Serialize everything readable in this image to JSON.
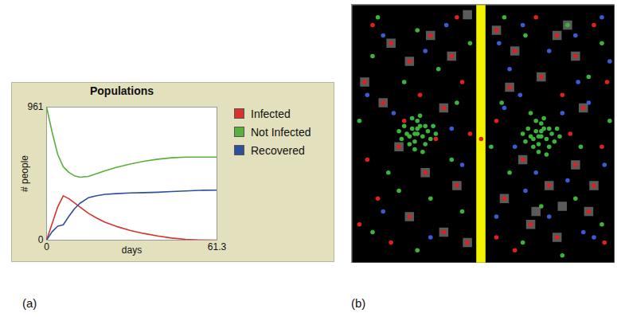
{
  "chart_data": [
    {
      "type": "line",
      "panel_label": "(a)",
      "title": "Populations",
      "x_label": "days",
      "y_label": "# people",
      "x": [
        0,
        2,
        4,
        6,
        8,
        10,
        12,
        15,
        18,
        21,
        25,
        30,
        35,
        40,
        45,
        50,
        55,
        61.3
      ],
      "xlim": [
        0,
        61.3
      ],
      "xticks": [
        0,
        61.3
      ],
      "ylim": [
        0,
        961
      ],
      "yticks": [
        0,
        961
      ],
      "legend": "right",
      "series": [
        {
          "name": "Infected",
          "color": "#d7322b",
          "values": [
            0,
            120,
            240,
            320,
            300,
            270,
            240,
            195,
            160,
            130,
            100,
            70,
            48,
            30,
            15,
            6,
            1,
            0
          ]
        },
        {
          "name": "Not Infected",
          "color": "#59b03c",
          "values": [
            961,
            780,
            620,
            530,
            490,
            465,
            455,
            460,
            480,
            500,
            525,
            550,
            570,
            585,
            595,
            600,
            600,
            600
          ]
        },
        {
          "name": "Recovered",
          "color": "#2f4f9a",
          "values": [
            0,
            61,
            101,
            111,
            171,
            226,
            266,
            306,
            321,
            331,
            336,
            341,
            343,
            346,
            351,
            355,
            360,
            361
          ]
        }
      ]
    },
    {
      "type": "scatter",
      "panel_label": "(b)",
      "xlim": [
        0,
        100
      ],
      "ylim": [
        0,
        100
      ],
      "tick_labels": false,
      "series": [
        {
          "type": "band",
          "color": "#f2f200",
          "x": [
            47.5,
            51
          ]
        },
        {
          "type": "scatter",
          "marker": "square",
          "color": "#5a5a5a",
          "points": [
            [
              15,
              85
            ],
            [
              22,
              78
            ],
            [
              5,
              70
            ],
            [
              30,
              88
            ],
            [
              38,
              80
            ],
            [
              35,
              60
            ],
            [
              18,
              45
            ],
            [
              28,
              35
            ],
            [
              40,
              30
            ],
            [
              22,
              18
            ],
            [
              35,
              12
            ],
            [
              44,
              8
            ],
            [
              12,
              62
            ],
            [
              55,
              90
            ],
            [
              62,
              82
            ],
            [
              78,
              88
            ],
            [
              85,
              80
            ],
            [
              88,
              60
            ],
            [
              60,
              68
            ],
            [
              65,
              40
            ],
            [
              75,
              30
            ],
            [
              85,
              38
            ],
            [
              68,
              15
            ],
            [
              78,
              10
            ],
            [
              90,
              20
            ],
            [
              72,
              72
            ],
            [
              92,
              30
            ],
            [
              82,
              92
            ],
            [
              44,
              96
            ],
            [
              70,
              20
            ],
            [
              80,
              22
            ],
            [
              58,
              25
            ]
          ]
        },
        {
          "type": "scatter",
          "marker": "circle",
          "color": "#3cb43c",
          "points": [
            [
              10,
              95
            ],
            [
              25,
              90
            ],
            [
              33,
              75
            ],
            [
              8,
              80
            ],
            [
              20,
              70
            ],
            [
              40,
              62
            ],
            [
              3,
              55
            ],
            [
              14,
              35
            ],
            [
              30,
              25
            ],
            [
              42,
              20
            ],
            [
              8,
              12
            ],
            [
              25,
              5
            ],
            [
              38,
              40
            ],
            [
              45,
              85
            ],
            [
              18,
              28
            ],
            [
              58,
              95
            ],
            [
              66,
              88
            ],
            [
              82,
              92
            ],
            [
              95,
              85
            ],
            [
              90,
              72
            ],
            [
              57,
              62
            ],
            [
              68,
              58
            ],
            [
              87,
              45
            ],
            [
              98,
              55
            ],
            [
              60,
              35
            ],
            [
              72,
              22
            ],
            [
              85,
              25
            ],
            [
              95,
              15
            ],
            [
              65,
              8
            ],
            [
              80,
              3
            ],
            [
              53,
              45
            ],
            [
              25,
              50
            ],
            [
              23,
              52
            ],
            [
              27,
              49
            ],
            [
              24,
              47
            ],
            [
              26,
              53
            ],
            [
              21,
              50
            ],
            [
              29,
              51
            ],
            [
              22,
              46
            ],
            [
              28,
              46
            ],
            [
              25,
              55
            ],
            [
              20,
              53
            ],
            [
              30,
              48
            ],
            [
              24,
              44
            ],
            [
              26,
              57
            ],
            [
              19,
              48
            ],
            [
              31,
              53
            ],
            [
              23,
              56
            ],
            [
              27,
              43
            ],
            [
              18,
              51
            ],
            [
              32,
              50
            ],
            [
              25,
              52
            ],
            [
              22,
              49
            ],
            [
              28,
              53
            ],
            [
              24,
              50
            ],
            [
              72,
              49
            ],
            [
              70,
              51
            ],
            [
              74,
              48
            ],
            [
              71,
              46
            ],
            [
              73,
              52
            ],
            [
              68,
              49
            ],
            [
              76,
              50
            ],
            [
              69,
              45
            ],
            [
              75,
              45
            ],
            [
              72,
              54
            ],
            [
              67,
              52
            ],
            [
              77,
              47
            ],
            [
              71,
              43
            ],
            [
              73,
              56
            ],
            [
              66,
              47
            ],
            [
              78,
              52
            ],
            [
              70,
              55
            ],
            [
              74,
              42
            ],
            [
              65,
              50
            ],
            [
              79,
              49
            ],
            [
              72,
              51
            ],
            [
              69,
              48
            ],
            [
              75,
              52
            ],
            [
              71,
              49
            ]
          ]
        },
        {
          "type": "scatter",
          "marker": "circle",
          "color": "#3c5ad2",
          "points": [
            [
              12,
              88
            ],
            [
              28,
              82
            ],
            [
              36,
              92
            ],
            [
              6,
              65
            ],
            [
              16,
              58
            ],
            [
              38,
              52
            ],
            [
              12,
              20
            ],
            [
              30,
              10
            ],
            [
              42,
              38
            ],
            [
              56,
              85
            ],
            [
              60,
              75
            ],
            [
              65,
              92
            ],
            [
              75,
              82
            ],
            [
              85,
              88
            ],
            [
              95,
              95
            ],
            [
              58,
              60
            ],
            [
              80,
              58
            ],
            [
              90,
              62
            ],
            [
              96,
              38
            ],
            [
              62,
              45
            ],
            [
              70,
              35
            ],
            [
              82,
              32
            ],
            [
              92,
              10
            ],
            [
              55,
              18
            ],
            [
              75,
              18
            ],
            [
              88,
              12
            ],
            [
              66,
              28
            ],
            [
              98,
              78
            ],
            [
              86,
              70
            ],
            [
              64,
              65
            ]
          ]
        },
        {
          "type": "scatter",
          "marker": "circle",
          "color": "#e0201f",
          "points": [
            [
              8,
              92
            ],
            [
              15,
              85
            ],
            [
              22,
              78
            ],
            [
              5,
              70
            ],
            [
              12,
              62
            ],
            [
              30,
              88
            ],
            [
              38,
              80
            ],
            [
              42,
              70
            ],
            [
              35,
              60
            ],
            [
              18,
              45
            ],
            [
              6,
              40
            ],
            [
              28,
              35
            ],
            [
              40,
              30
            ],
            [
              10,
              25
            ],
            [
              22,
              18
            ],
            [
              35,
              12
            ],
            [
              44,
              8
            ],
            [
              15,
              8
            ],
            [
              45,
              50
            ],
            [
              32,
              48
            ],
            [
              20,
              55
            ],
            [
              3,
              15
            ],
            [
              40,
              95
            ],
            [
              26,
              65
            ],
            [
              49.2,
              48
            ],
            [
              55,
              90
            ],
            [
              62,
              82
            ],
            [
              70,
              95
            ],
            [
              78,
              88
            ],
            [
              85,
              80
            ],
            [
              92,
              92
            ],
            [
              97,
              70
            ],
            [
              88,
              60
            ],
            [
              80,
              65
            ],
            [
              60,
              68
            ],
            [
              55,
              55
            ],
            [
              65,
              40
            ],
            [
              75,
              30
            ],
            [
              85,
              38
            ],
            [
              95,
              45
            ],
            [
              58,
              25
            ],
            [
              68,
              15
            ],
            [
              78,
              10
            ],
            [
              90,
              20
            ],
            [
              96,
              8
            ],
            [
              55,
              10
            ],
            [
              83,
              50
            ],
            [
              62,
              5
            ],
            [
              72,
              72
            ],
            [
              92,
              30
            ]
          ]
        }
      ]
    }
  ]
}
